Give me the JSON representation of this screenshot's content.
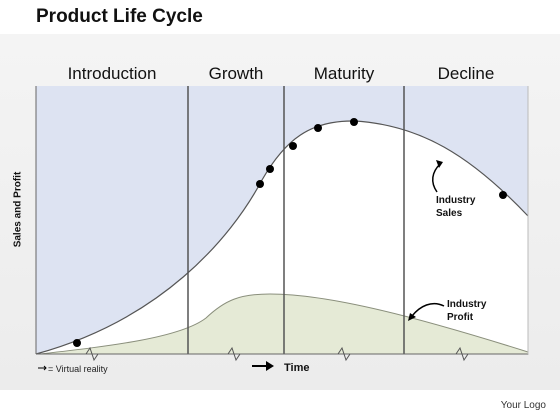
{
  "title": "Product Life Cycle",
  "stages": [
    "Introduction",
    "Growth",
    "Maturity",
    "Decline"
  ],
  "y_axis_label": "Sales and Profit",
  "x_axis_label": "Time",
  "curves": [
    {
      "label_line1": "Industry",
      "label_line2": "Sales"
    },
    {
      "label_line1": "Industry",
      "label_line2": "Profit"
    }
  ],
  "legend": "= Virtual reality",
  "logo_text": "Your Logo",
  "colors": {
    "sales_fill": "#dde3f2",
    "profit_fill": "#e5ead6",
    "band": "#efefef",
    "lines": "#555555",
    "markers": "#000000"
  },
  "icons": [
    "arrow-right-icon",
    "curved-arrow-icon",
    "squiggle-break-icon"
  ]
}
